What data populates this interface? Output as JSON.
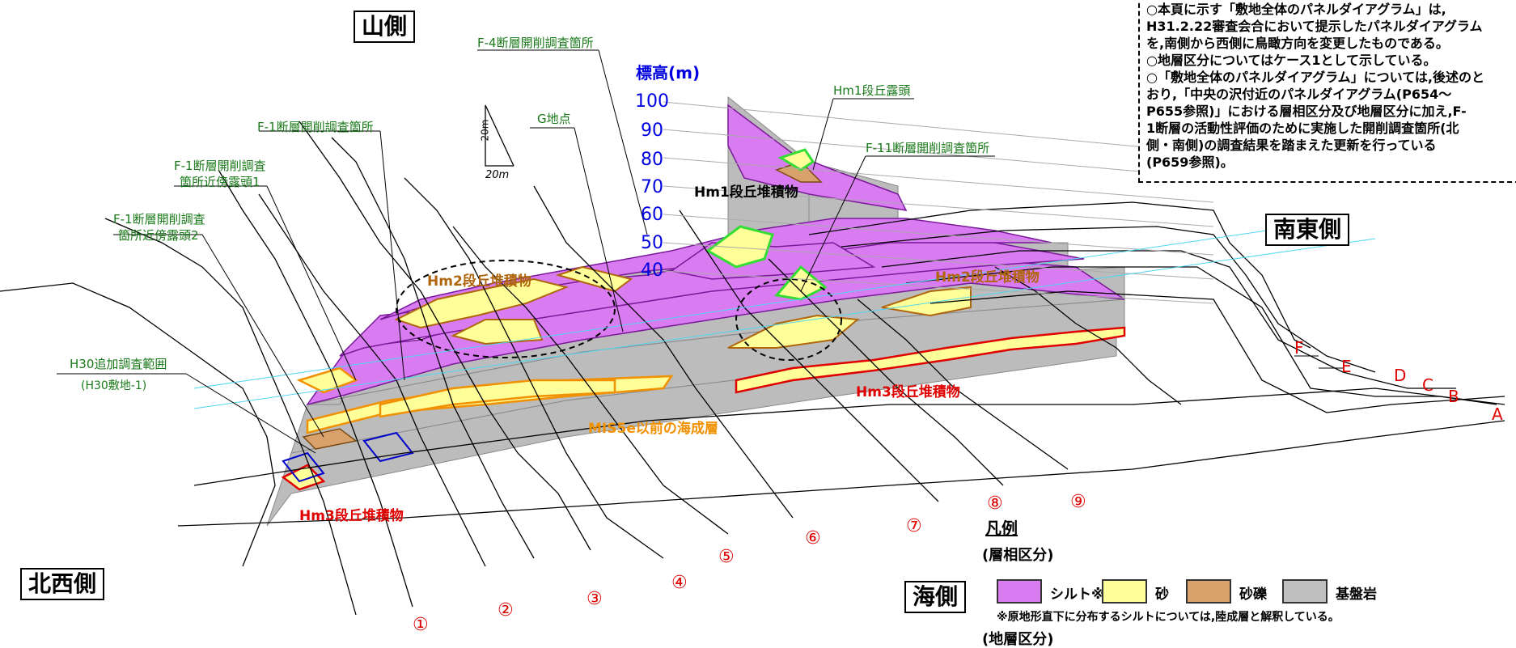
{
  "labels": {
    "mountain_side": "山側",
    "southeast_side": "南東側",
    "northwest_side": "北西側",
    "sea_side": "海側",
    "elevation": "標高(m)",
    "elevation_ticks": [
      "100",
      "90",
      "80",
      "70",
      "60",
      "50",
      "40"
    ],
    "scale_vertical": "20m",
    "scale_horizontal": "20m"
  },
  "callouts": {
    "f4": "F-4断層開削調査箇所",
    "f1": "F-1断層開削調査箇所",
    "g_point": "G地点",
    "f1_outcrop1_line1": "F-1断層開削調査",
    "f1_outcrop1_line2": "箇所近傍露頭1",
    "f1_outcrop2_line1": "F-1断層開削調査",
    "f1_outcrop2_line2": "箇所近傍露頭2",
    "h30_line1": "H30追加調査範囲",
    "h30_line2": "(H30敷地-1)",
    "hm1_outcrop": "Hm1段丘露頭",
    "f11": "F-11断層開削調査箇所"
  },
  "deposits": {
    "hm1": "Hm1段丘堆積物",
    "hm2_left": "Hm2段丘堆積物",
    "hm2_right": "Hm2段丘堆積物",
    "hm3_right": "Hm3段丘堆積物",
    "hm3_left": "Hm3段丘堆積物",
    "mis5e": "MIS5e以前の海成層"
  },
  "sections_letters": [
    "F",
    "E",
    "D",
    "C",
    "B",
    "A"
  ],
  "sections_numbers": [
    "①",
    "②",
    "③",
    "④",
    "⑤",
    "⑥",
    "⑦",
    "⑧",
    "⑨"
  ],
  "notes": [
    "○本頁に示す「敷地全体のパネルダイアグラム」は,",
    "  H31.2.22審査会合において提示したパネルダイアグラム",
    "  を,南側から西側に鳥瞰方向を変更したものである。",
    "○地層区分についてはケース1として示している。",
    "○「敷地全体のパネルダイアグラム」については,後述のと",
    "  おり,「中央の沢付近のパネルダイアグラム(P654～",
    "  P655参照)」における層相区分及び地層区分に加え,F-",
    "  1断層の活動性評価のために実施した開削調査箇所(北",
    "  側・南側)の調査結果を踏まえた更新を行っている",
    "  (P659参照)。"
  ],
  "legend": {
    "title": "凡例",
    "subtitle": "(層相区分)",
    "items": [
      {
        "label": "シルト※",
        "color": "#d97cf2"
      },
      {
        "label": "砂",
        "color": "#ffff99"
      },
      {
        "label": "砂礫",
        "color": "#d9a26c"
      },
      {
        "label": "基盤岩",
        "color": "#bfbfbf"
      }
    ],
    "footnote": "※原地形直下に分布するシルトについては,陸成層と解釈している。",
    "bottom_cut": "(地層区分)"
  }
}
